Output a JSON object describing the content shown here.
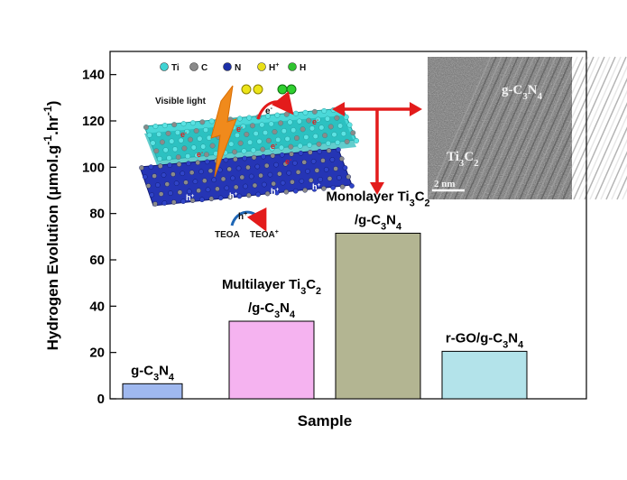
{
  "chart_data": {
    "type": "bar",
    "categories": [
      "g-C3N4",
      "Multilayer Ti3C2/g-C3N4",
      "Monolayer Ti3C2/g-C3N4",
      "r-GO/g-C3N4"
    ],
    "values": [
      6.5,
      33.5,
      71.5,
      20.5
    ],
    "colors": [
      "#9fb8ef",
      "#f5b3f0",
      "#b3b592",
      "#b3e3ea"
    ],
    "xlabel": "Sample",
    "ylim": [
      0,
      150
    ],
    "yticks": [
      0,
      20,
      40,
      60,
      80,
      100,
      120,
      140
    ],
    "grid": false,
    "bar_labels": [
      {
        "lines": [
          [
            [
              "g-C",
              ""
            ],
            [
              "3",
              "sub"
            ],
            [
              "N",
              ""
            ],
            [
              "4",
              "sub"
            ]
          ]
        ]
      },
      {
        "lines": [
          [
            [
              "Multilayer Ti",
              ""
            ],
            [
              "3",
              "sub"
            ],
            [
              "C",
              ""
            ],
            [
              "2",
              "sub"
            ]
          ],
          [
            [
              "/g-C",
              ""
            ],
            [
              "3",
              "sub"
            ],
            [
              "N",
              ""
            ],
            [
              "4",
              "sub"
            ]
          ]
        ]
      },
      {
        "lines": [
          [
            [
              "Monolayer Ti",
              ""
            ],
            [
              "3",
              "sub"
            ],
            [
              "C",
              ""
            ],
            [
              "2",
              "sub"
            ]
          ],
          [
            [
              "/g-C",
              ""
            ],
            [
              "3",
              "sub"
            ],
            [
              "N",
              ""
            ],
            [
              "4",
              "sub"
            ]
          ]
        ]
      },
      {
        "lines": [
          [
            [
              "r-GO/g-C",
              ""
            ],
            [
              "3",
              "sub"
            ],
            [
              "N",
              ""
            ],
            [
              "4",
              "sub"
            ]
          ]
        ]
      }
    ],
    "ylabel_parts": [
      [
        "Hydrogen Evolution (μmol.g",
        ""
      ],
      [
        "-1",
        "sup"
      ],
      [
        ".hr",
        ""
      ],
      [
        "-1",
        "sup"
      ],
      [
        ")",
        ""
      ]
    ]
  },
  "inset": {
    "legend": [
      {
        "symbol": "Ti",
        "color": "#3fd3d3"
      },
      {
        "symbol": "C",
        "color": "#8a8a8a"
      },
      {
        "symbol": "N",
        "color": "#1c2fa8"
      },
      {
        "symbol": "H+",
        "color": "#e8df18"
      },
      {
        "symbol": "H",
        "color": "#2fc32f"
      }
    ],
    "visible_light": "Visible light",
    "electron": "e",
    "electron_sup": "-",
    "hole": "h",
    "hole_sup": "+",
    "teoa": "TEOA",
    "teoa_plus": "TEOA",
    "teoa_plus_sup": "+"
  },
  "tem": {
    "label_top": [
      [
        "g-C",
        ""
      ],
      [
        "3",
        "sub"
      ],
      [
        "N",
        ""
      ],
      [
        "4",
        "sub"
      ]
    ],
    "label_mid": [
      [
        "Ti",
        ""
      ],
      [
        "3",
        "sub"
      ],
      [
        "C",
        ""
      ],
      [
        "2",
        "sub"
      ]
    ],
    "scale_bar": "2 nm"
  }
}
